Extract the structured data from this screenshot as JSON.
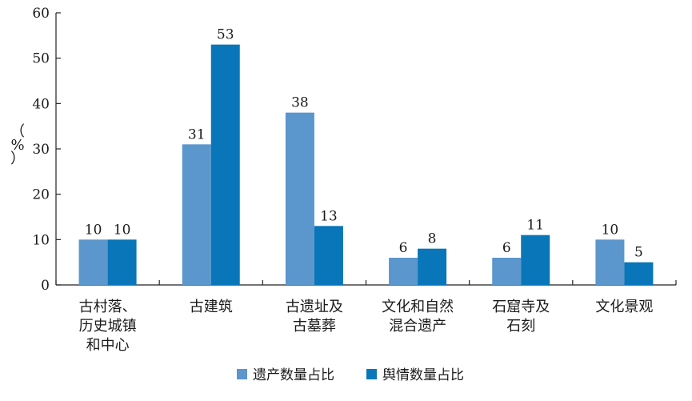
{
  "chart_data": {
    "type": "bar",
    "title": "",
    "xlabel": "",
    "ylabel": "（%）",
    "ylim": [
      0,
      60
    ],
    "yticks": [
      0,
      10,
      20,
      30,
      40,
      50,
      60
    ],
    "grid": false,
    "legend_position": "bottom-center",
    "categories": [
      [
        "古村落、",
        "历史城镇",
        "和中心"
      ],
      [
        "古建筑"
      ],
      [
        "古遗址及",
        "古墓葬"
      ],
      [
        "文化和自然",
        "混合遗产"
      ],
      [
        "石窟寺及",
        "石刻"
      ],
      [
        "文化景观"
      ]
    ],
    "series": [
      {
        "name": "遗产数量占比",
        "color": "#5b96cd",
        "values": [
          10,
          31,
          38,
          6,
          6,
          10
        ]
      },
      {
        "name": "舆情数量占比",
        "color": "#0876b8",
        "values": [
          10,
          53,
          13,
          8,
          11,
          5
        ]
      }
    ]
  }
}
